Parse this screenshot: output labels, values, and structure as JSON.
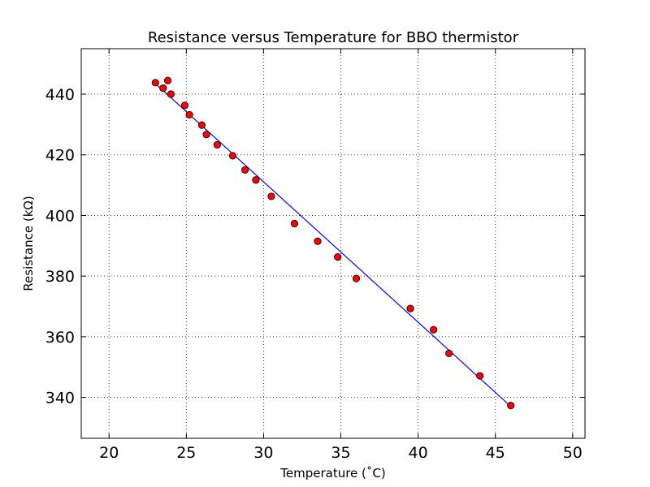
{
  "chart_data": {
    "type": "scatter",
    "title": "Resistance versus Temperature for BBO thermistor",
    "xlabel": "Temperature (˚C)",
    "ylabel": "Resistance (kΩ)",
    "xlim": [
      18.2,
      50.8
    ],
    "ylim": [
      326.5,
      455.0
    ],
    "xticks": [
      20,
      25,
      30,
      35,
      40,
      45,
      50
    ],
    "yticks": [
      340,
      360,
      380,
      400,
      420,
      440
    ],
    "grid": true,
    "series": [
      {
        "kind": "points",
        "marker": "circle",
        "color": "#ff0000",
        "points": [
          {
            "x": 23.0,
            "y": 443.8
          },
          {
            "x": 23.5,
            "y": 442.0
          },
          {
            "x": 23.8,
            "y": 444.5
          },
          {
            "x": 24.0,
            "y": 440.0
          },
          {
            "x": 24.9,
            "y": 436.3
          },
          {
            "x": 25.2,
            "y": 433.2
          },
          {
            "x": 26.0,
            "y": 429.8
          },
          {
            "x": 26.3,
            "y": 426.7
          },
          {
            "x": 27.0,
            "y": 423.3
          },
          {
            "x": 28.0,
            "y": 419.7
          },
          {
            "x": 28.8,
            "y": 415.0
          },
          {
            "x": 29.5,
            "y": 411.7
          },
          {
            "x": 30.5,
            "y": 406.3
          },
          {
            "x": 32.0,
            "y": 397.3
          },
          {
            "x": 33.5,
            "y": 391.5
          },
          {
            "x": 34.8,
            "y": 386.3
          },
          {
            "x": 36.0,
            "y": 379.2
          },
          {
            "x": 39.5,
            "y": 369.3
          },
          {
            "x": 41.0,
            "y": 362.3
          },
          {
            "x": 42.0,
            "y": 354.5
          },
          {
            "x": 44.0,
            "y": 347.1
          },
          {
            "x": 46.0,
            "y": 337.3
          }
        ]
      },
      {
        "kind": "fit-line",
        "color": "#0000ff",
        "points": [
          {
            "x": 23.0,
            "y": 443.5
          },
          {
            "x": 46.0,
            "y": 337.0
          }
        ]
      }
    ]
  }
}
